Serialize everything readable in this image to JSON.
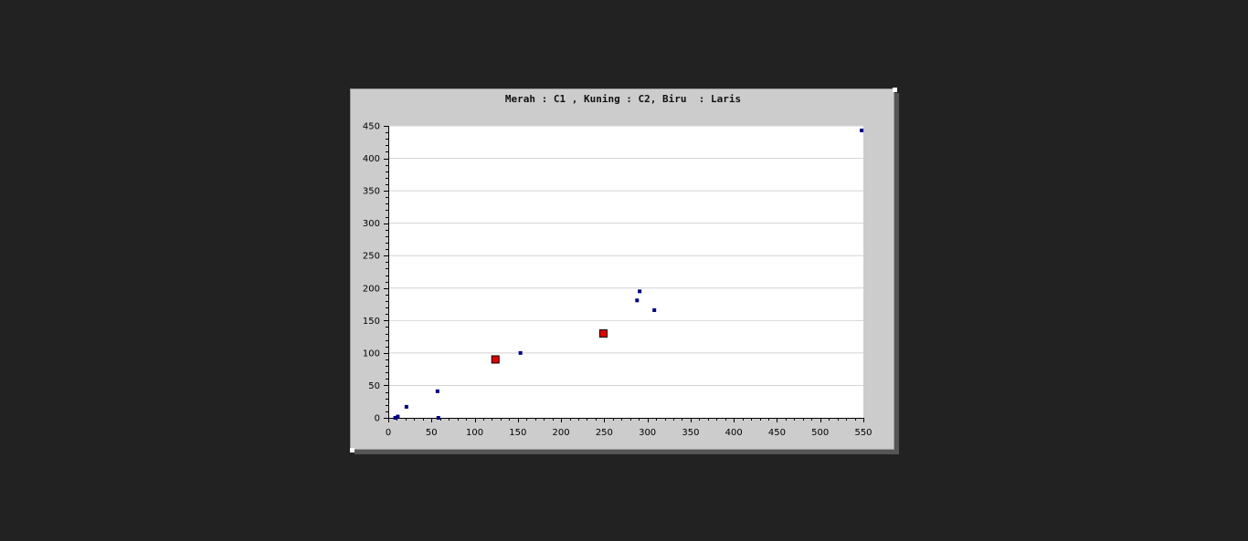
{
  "chart_data": {
    "type": "scatter",
    "title": "Merah : C1 , Kuning : C2, Biru  : Laris",
    "xlabel": "",
    "ylabel": "",
    "xlim": [
      0,
      550
    ],
    "ylim": [
      0,
      450
    ],
    "x_ticks": [
      0,
      50,
      100,
      150,
      200,
      250,
      300,
      350,
      400,
      450,
      500,
      550
    ],
    "y_ticks": [
      0,
      50,
      100,
      150,
      200,
      250,
      300,
      350,
      400,
      450
    ],
    "grid": "horizontal",
    "legend": "none",
    "series": [
      {
        "color": "#000080",
        "marker": "small-square",
        "points": [
          {
            "x": 8,
            "y": 0
          },
          {
            "x": 11,
            "y": 2
          },
          {
            "x": 21,
            "y": 17
          },
          {
            "x": 57,
            "y": 41
          },
          {
            "x": 58,
            "y": 0
          },
          {
            "x": 153,
            "y": 100
          },
          {
            "x": 288,
            "y": 181
          },
          {
            "x": 291,
            "y": 195
          },
          {
            "x": 308,
            "y": 166
          },
          {
            "x": 548,
            "y": 443
          }
        ]
      },
      {
        "color": "#e00000",
        "marker": "large-square",
        "points": [
          {
            "x": 124,
            "y": 90
          },
          {
            "x": 249,
            "y": 130
          }
        ]
      }
    ]
  }
}
